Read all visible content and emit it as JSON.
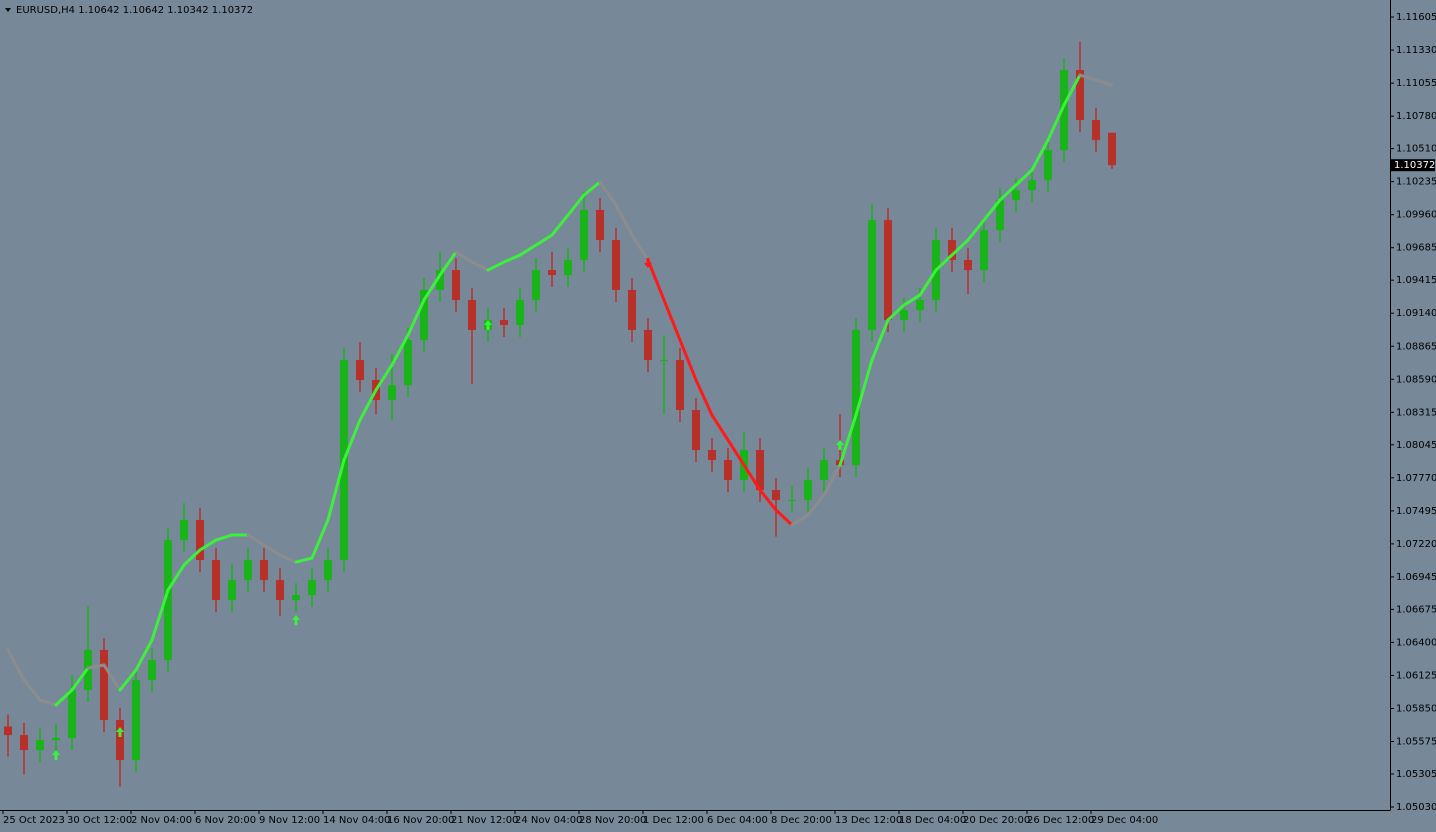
{
  "chart_data": {
    "type": "candlestick",
    "symbol_line": "EURUSD,H4  1.10642 1.10642 1.10342 1.10372",
    "categories": [
      "25 Oct 2023",
      null,
      null,
      null,
      "30 Oct 12:00",
      null,
      null,
      null,
      "2 Nov 04:00",
      null,
      null,
      null,
      "6 Nov 20:00",
      null,
      null,
      null,
      "9 Nov 12:00",
      null,
      null,
      null,
      "14 Nov 04:00",
      null,
      null,
      null,
      "16 Nov 20:00",
      null,
      null,
      null,
      "21 Nov 12:00",
      null,
      null,
      null,
      "24 Nov 04:00",
      null,
      null,
      null,
      "28 Nov 20:00",
      null,
      null,
      null,
      "1 Dec 12:00",
      null,
      null,
      null,
      "6 Dec 04:00",
      null,
      null,
      null,
      "8 Dec 20:00",
      null,
      null,
      null,
      "13 Dec 12:00",
      null,
      null,
      null,
      "18 Dec 04:00",
      null,
      null,
      null,
      "20 Dec 20:00",
      null,
      null,
      null,
      "26 Dec 12:00",
      null,
      null,
      null,
      "29 Dec 04:00",
      null
    ],
    "open": [
      1.057,
      1.05629,
      1.05504,
      1.05587,
      1.05604,
      1.06004,
      1.06337,
      1.05754,
      1.05421,
      1.06087,
      1.06253,
      1.07252,
      1.07419,
      1.07086,
      1.06753,
      1.06919,
      1.07086,
      1.06919,
      1.06753,
      1.06794,
      1.06919,
      1.07086,
      1.0875,
      1.08584,
      1.08417,
      1.08542,
      1.08917,
      1.09333,
      1.09499,
      1.0925,
      1.09,
      1.09083,
      1.09042,
      1.0925,
      1.09499,
      1.09458,
      1.09583,
      1.09999,
      1.09749,
      1.09333,
      1.09,
      1.0875,
      1.0875,
      1.08334,
      1.08001,
      1.07918,
      1.07752,
      1.08001,
      1.07668,
      1.07585,
      1.07585,
      1.07752,
      1.07918,
      1.07876,
      1.09,
      1.09915,
      1.09083,
      1.09166,
      1.0925,
      1.09749,
      1.09583,
      1.09499,
      1.09832,
      1.10082,
      1.10165,
      1.10248,
      1.10498,
      1.11164,
      1.10748,
      1.10642
    ],
    "high": [
      1.058,
      1.05729,
      1.05687,
      1.0572,
      1.0613,
      1.067,
      1.06437,
      1.05854,
      1.06187,
      1.06353,
      1.07352,
      1.0756,
      1.07519,
      1.07186,
      1.0705,
      1.07186,
      1.07186,
      1.07019,
      1.06894,
      1.07019,
      1.07186,
      1.0885,
      1.089,
      1.08684,
      1.088,
      1.09017,
      1.09433,
      1.0965,
      1.09599,
      1.0935,
      1.09183,
      1.09183,
      1.0935,
      1.09599,
      1.0965,
      1.09683,
      1.1015,
      1.10099,
      1.09849,
      1.09433,
      1.091,
      1.0895,
      1.0885,
      1.08434,
      1.08101,
      1.08018,
      1.0815,
      1.08101,
      1.07768,
      1.077,
      1.07852,
      1.08018,
      1.083,
      1.091,
      1.1005,
      1.10015,
      1.09266,
      1.0935,
      1.09849,
      1.09849,
      1.09683,
      1.09932,
      1.10182,
      1.10265,
      1.10348,
      1.10598,
      1.11264,
      1.114,
      1.10848,
      1.10642
    ],
    "low": [
      1.0545,
      1.053,
      1.05404,
      1.0548,
      1.05504,
      1.05904,
      1.05654,
      1.052,
      1.05321,
      1.05987,
      1.06153,
      1.07152,
      1.06986,
      1.06653,
      1.06653,
      1.06819,
      1.06819,
      1.0662,
      1.06653,
      1.06694,
      1.06819,
      1.06986,
      1.08484,
      1.083,
      1.0825,
      1.08442,
      1.08817,
      1.09233,
      1.0915,
      1.0855,
      1.089,
      1.08942,
      1.08942,
      1.0915,
      1.09358,
      1.09358,
      1.09483,
      1.09649,
      1.09233,
      1.089,
      1.0865,
      1.083,
      1.08234,
      1.07901,
      1.07818,
      1.07652,
      1.07652,
      1.07568,
      1.0728,
      1.07485,
      1.07485,
      1.07652,
      1.07776,
      1.07776,
      1.089,
      1.08983,
      1.08983,
      1.09066,
      1.0915,
      1.09483,
      1.093,
      1.09399,
      1.09732,
      1.09982,
      1.10065,
      1.10148,
      1.10398,
      1.10648,
      1.10481,
      1.10342
    ],
    "close": [
      1.05629,
      1.05504,
      1.05587,
      1.05604,
      1.06004,
      1.06337,
      1.05754,
      1.05421,
      1.06087,
      1.06253,
      1.07252,
      1.07419,
      1.07086,
      1.06753,
      1.06919,
      1.07086,
      1.06919,
      1.06753,
      1.06794,
      1.06919,
      1.07086,
      1.0875,
      1.08584,
      1.08417,
      1.08542,
      1.08917,
      1.09333,
      1.09499,
      1.0925,
      1.09,
      1.09083,
      1.09042,
      1.0925,
      1.09499,
      1.09458,
      1.09583,
      1.09999,
      1.09749,
      1.09333,
      1.09,
      1.0875,
      1.0875,
      1.08334,
      1.08001,
      1.07918,
      1.07752,
      1.08001,
      1.07668,
      1.07585,
      1.07585,
      1.07752,
      1.07918,
      1.07876,
      1.09,
      1.09915,
      1.09083,
      1.09166,
      1.0925,
      1.09749,
      1.09583,
      1.09499,
      1.09832,
      1.10082,
      1.10165,
      1.10248,
      1.10498,
      1.11164,
      1.10748,
      1.10581,
      1.10372
    ],
    "up_color": "#19b419",
    "down_color": "#b8302a",
    "background": "#778899",
    "ylim": [
      1.05005,
      1.11747
    ],
    "yticks": [
      1.11605,
      {
        "value": 1.1133,
        "label": "1.11330"
      },
      1.11055,
      {
        "value": 1.1078,
        "label": "1.10780"
      },
      {
        "value": 1.1051,
        "label": "1.10510"
      },
      1.10235,
      {
        "value": 1.0996,
        "label": "1.09960"
      },
      1.09685,
      1.09415,
      {
        "value": 1.0914,
        "label": "1.09140"
      },
      1.08865,
      {
        "value": 1.0859,
        "label": "1.08590"
      },
      1.08315,
      1.08045,
      {
        "value": 1.0777,
        "label": "1.07770"
      },
      1.07495,
      {
        "value": 1.0722,
        "label": "1.07220"
      },
      1.06945,
      1.06675,
      {
        "value": 1.064,
        "label": "1.06400"
      },
      1.06125,
      {
        "value": 1.0585,
        "label": "1.05850"
      },
      1.05575,
      1.05305,
      {
        "value": 1.0503,
        "label": "1.05030"
      }
    ],
    "indicator": {
      "values": [
        1.06337,
        1.06087,
        1.0592,
        1.05879,
        1.06004,
        1.06187,
        1.06212,
        1.06004,
        1.0617,
        1.0642,
        1.06836,
        1.07044,
        1.07169,
        1.07252,
        1.07294,
        1.07294,
        1.0721,
        1.07127,
        1.07069,
        1.07102,
        1.07419,
        1.07918,
        1.08251,
        1.08501,
        1.08709,
        1.08958,
        1.0925,
        1.09458,
        1.09649,
        1.09566,
        1.09499,
        1.09566,
        1.09624,
        1.09707,
        1.09791,
        1.09957,
        1.10124,
        1.10232,
        1.1004,
        1.09791,
        1.09583,
        1.0925,
        1.08917,
        1.08584,
        1.08292,
        1.08084,
        1.07876,
        1.07668,
        1.07502,
        1.07377,
        1.0746,
        1.07627,
        1.07876,
        1.08292,
        1.0875,
        1.09083,
        1.09208,
        1.09291,
        1.09499,
        1.09624,
        1.09749,
        1.09915,
        1.10082,
        1.10207,
        1.10332,
        1.10581,
        1.10873,
        1.11122,
        1.11081,
        1.11039
      ],
      "segment_trend": [
        "flat",
        "flat",
        "flat",
        "up",
        "up",
        "flat",
        "flat",
        "up",
        "up",
        "up",
        "up",
        "up",
        "up",
        "up",
        "up",
        "flat",
        "flat",
        "flat",
        "up",
        "up",
        "up",
        "up",
        "up",
        "up",
        "up",
        "up",
        "up",
        "up",
        "flat",
        "flat",
        "up",
        "up",
        "up",
        "up",
        "up",
        "up",
        "up",
        "flat",
        "flat",
        "flat",
        "down",
        "down",
        "down",
        "down",
        "down",
        "down",
        "down",
        "down",
        "down",
        "flat",
        "flat",
        "flat",
        "up",
        "up",
        "up",
        "up",
        "up",
        "up",
        "up",
        "up",
        "up",
        "up",
        "up",
        "up",
        "up",
        "up",
        "up",
        "flat",
        "flat"
      ],
      "palette": {
        "up": "#3cf03c",
        "down": "#ff1a1a",
        "flat": "#8c8c8c"
      }
    },
    "buy_signals": {
      "x": [
        3,
        7,
        18,
        30,
        52
      ],
      "values": [
        1.05463,
        1.05654,
        1.06586,
        1.09042,
        1.08043
      ],
      "color": "#3cf03c"
    },
    "sell_signals": {
      "x": [
        40
      ],
      "values": [
        1.09558
      ],
      "color": "#ff1a1a"
    }
  }
}
